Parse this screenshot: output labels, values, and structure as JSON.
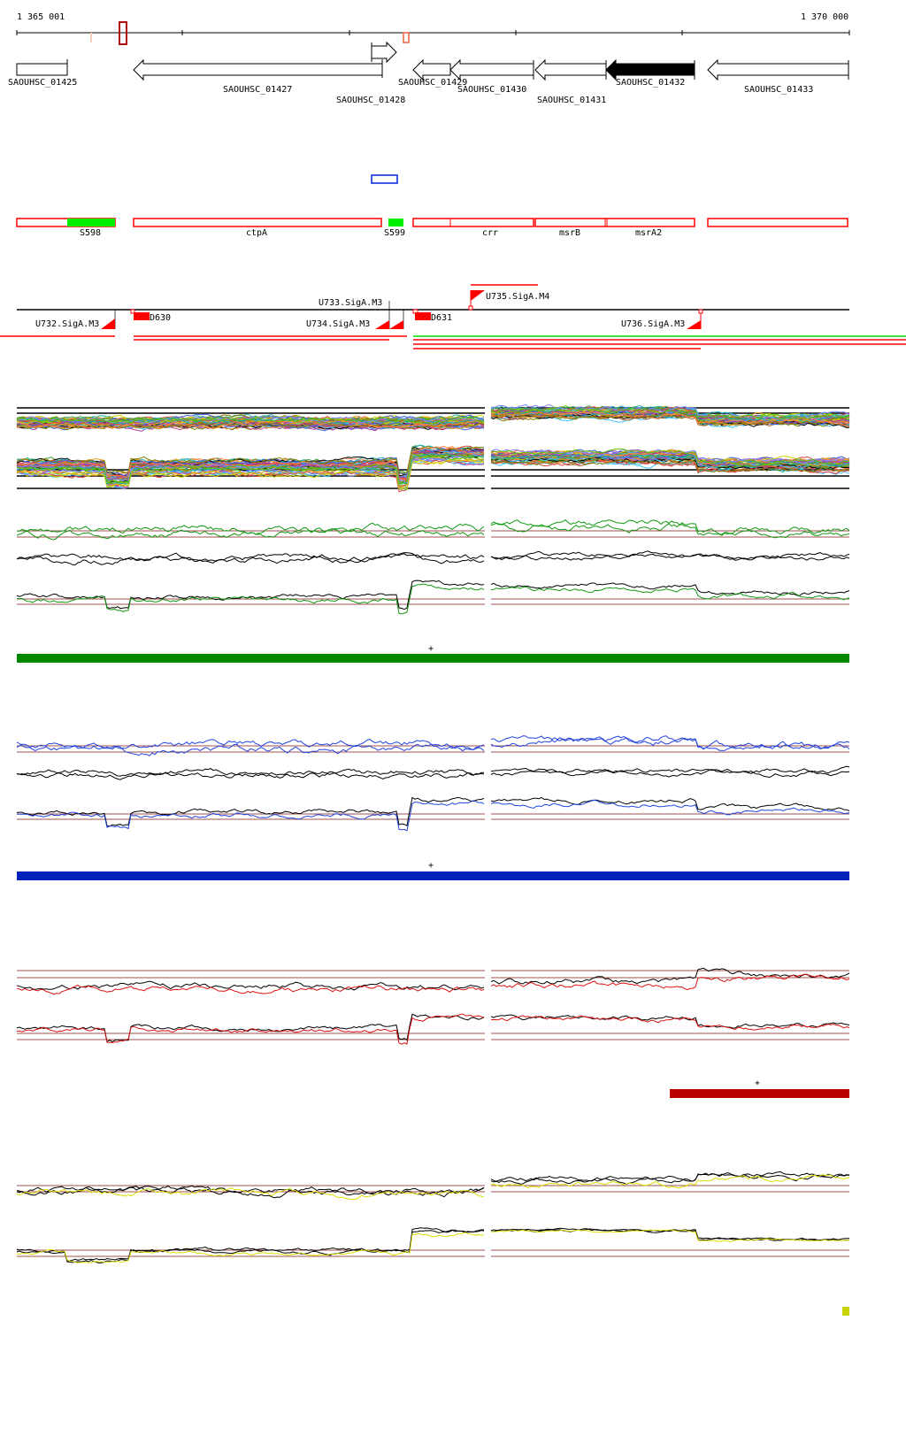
{
  "scale": {
    "start_label": "1 365 001",
    "end_label": "1 370 000"
  },
  "genes": [
    {
      "label": "SAOUHSC_01425",
      "strand": "+",
      "fill": "#ffffff"
    },
    {
      "label": "SAOUHSC_01427",
      "strand": "-",
      "fill": "#ffffff"
    },
    {
      "label": "SAOUHSC_01428",
      "strand": "+",
      "fill": "#ffffff"
    },
    {
      "label": "SAOUHSC_01429",
      "strand": "-",
      "fill": "#ffffff"
    },
    {
      "label": "SAOUHSC_01430",
      "strand": "-",
      "fill": "#ffffff"
    },
    {
      "label": "SAOUHSC_01431",
      "strand": "-",
      "fill": "#ffffff"
    },
    {
      "label": "SAOUHSC_01432",
      "strand": "-",
      "fill": "#000000"
    },
    {
      "label": "SAOUHSC_01433",
      "strand": "-",
      "fill": "#ffffff"
    }
  ],
  "features": [
    "S598",
    "ctpA",
    "S599",
    "crr",
    "msrB",
    "msrA2"
  ],
  "promoters": [
    "U732.SigA.M3",
    "D630",
    "U733.SigA.M3",
    "U734.SigA.M3",
    "D631",
    "U735.SigA.M4",
    "U736.SigA.M3"
  ],
  "condition_bars": [
    {
      "marker": "+",
      "color": "#008800"
    },
    {
      "marker": "+",
      "color": "#0022bb"
    },
    {
      "marker": "+",
      "color": "#bb0000"
    }
  ],
  "colors": {
    "feature_outline": "#ff0000",
    "feature_fill": "#00ee00",
    "threshold": "#a05050",
    "yellow_trace": "#dddd00",
    "yellow_square": "#c8d400"
  }
}
